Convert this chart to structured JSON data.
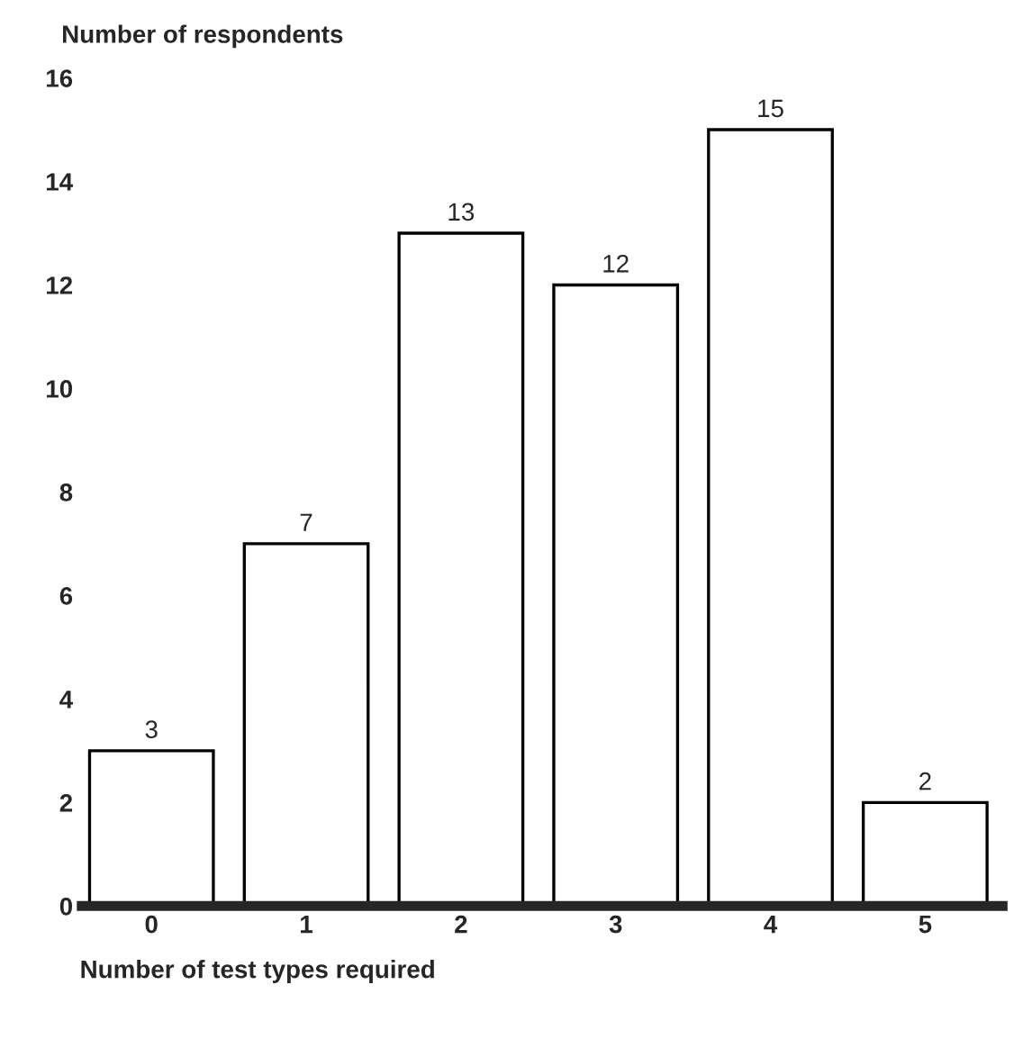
{
  "chart_data": {
    "type": "bar",
    "ylabel": "Number of respondents",
    "xlabel": "Number of test types required",
    "categories": [
      "0",
      "1",
      "2",
      "3",
      "4",
      "5"
    ],
    "values": [
      3,
      7,
      13,
      12,
      15,
      2
    ],
    "color": "#ffffff",
    "ylim": [
      0,
      16
    ],
    "yticks": [
      0,
      2,
      4,
      6,
      8,
      10,
      12,
      14,
      16
    ],
    "data_labels": true,
    "grid": false,
    "legend": false
  }
}
